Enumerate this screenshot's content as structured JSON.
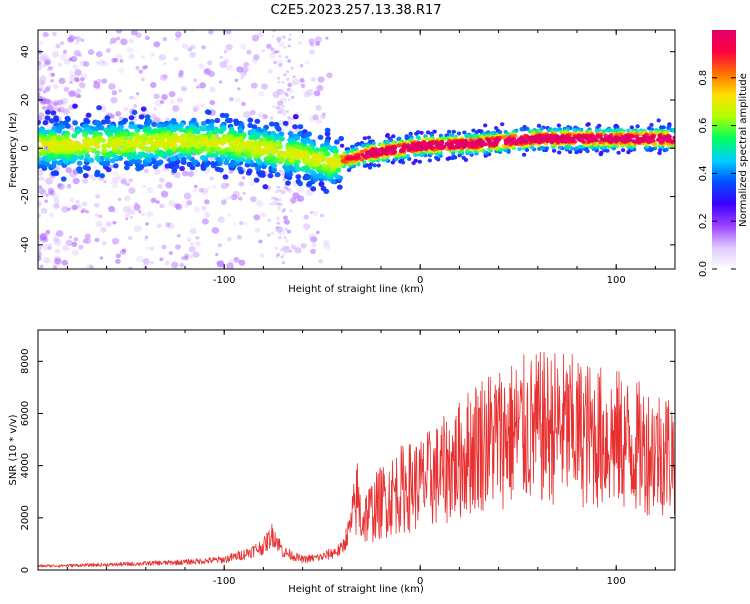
{
  "figure": {
    "title": "C2E5.2023.257.13.38.R17"
  },
  "colors": {
    "snr_line": "#e83030",
    "scatter_low": "#c9a0f0",
    "background": "#ffffff"
  },
  "colormap_stops": [
    "#ffffff",
    "#e0c8ff",
    "#9a40ff",
    "#3a00ff",
    "#0050ff",
    "#00d0ff",
    "#00ff60",
    "#b0ff00",
    "#ffe000",
    "#ff7000",
    "#ff0040",
    "#e0006a"
  ],
  "chart_data": [
    {
      "type": "heatmap",
      "title": "",
      "xlabel": "Height of straight line (km)",
      "ylabel": "Frequency (Hz)",
      "xlim": [
        -195,
        130
      ],
      "ylim": [
        -50,
        49
      ],
      "xticks": [
        "-100",
        "0",
        "100"
      ],
      "yticks": [
        "-40",
        "-20",
        "0",
        "20",
        "40"
      ],
      "grid": false,
      "colorbar": {
        "label": "Normalized spectral amplitude",
        "range": [
          0,
          1
        ],
        "ticks": [
          "0.0",
          "0.2",
          "0.4",
          "0.6",
          "0.8"
        ]
      },
      "ridge_x": [
        -195,
        -150,
        -120,
        -100,
        -80,
        -60,
        -45,
        -35,
        -25,
        0,
        30,
        60,
        90,
        130
      ],
      "ridge_y": [
        1,
        2,
        3,
        2,
        0,
        -3,
        -6,
        -4,
        -2,
        1,
        2,
        4,
        4,
        4
      ]
    },
    {
      "type": "line",
      "title": "",
      "xlabel": "Height of straight line (km)",
      "ylabel": "SNR (10 * v/v)",
      "xlim": [
        -195,
        130
      ],
      "ylim": [
        0,
        9200
      ],
      "xticks": [
        "-100",
        "0",
        "100"
      ],
      "yticks": [
        "0",
        "2000",
        "4000",
        "6000",
        "8000"
      ],
      "grid": false,
      "series": [
        {
          "x": [
            -195,
            -160,
            -140,
            -120,
            -100,
            -90,
            -80,
            -75,
            -70,
            -60,
            -50,
            -40,
            -35,
            -32,
            -30,
            -20,
            -10,
            0,
            10,
            20,
            30,
            40,
            50,
            60,
            70,
            80,
            90,
            100,
            110,
            120,
            130
          ],
          "values": [
            150,
            200,
            250,
            300,
            400,
            600,
            900,
            1400,
            700,
            400,
            500,
            800,
            1800,
            2800,
            1900,
            2600,
            3100,
            3300,
            3700,
            4200,
            4900,
            5100,
            5300,
            5400,
            5500,
            5300,
            5100,
            5000,
            4700,
            4600,
            4500
          ]
        }
      ]
    }
  ]
}
